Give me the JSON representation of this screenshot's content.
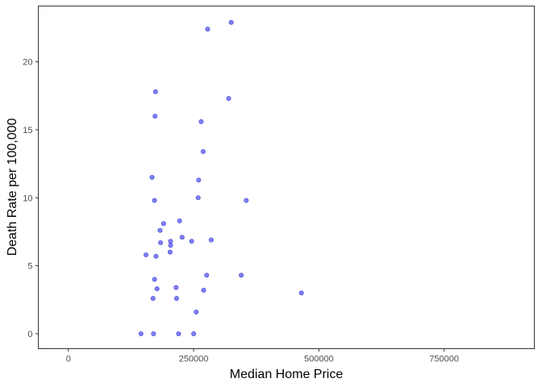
{
  "chart_data": {
    "type": "scatter",
    "title": "",
    "xlabel": "Median Home Price",
    "ylabel": "Death Rate per 100,000",
    "xlim": [
      -60000,
      930000
    ],
    "ylim": [
      -1.1,
      24.1
    ],
    "x_ticks": [
      0,
      250000,
      500000,
      750000
    ],
    "x_tick_labels": [
      "0",
      "250000",
      "500000",
      "750000"
    ],
    "y_ticks": [
      0,
      5,
      10,
      15,
      20
    ],
    "y_tick_labels": [
      "0",
      "5",
      "10",
      "15",
      "20"
    ],
    "grid": false,
    "legend": "none",
    "point_color": "#0000ff",
    "point_opacity": 0.5,
    "points": [
      {
        "x": 325000,
        "y": 22.9
      },
      {
        "x": 278000,
        "y": 22.4
      },
      {
        "x": 174000,
        "y": 17.8
      },
      {
        "x": 320000,
        "y": 17.3
      },
      {
        "x": 173000,
        "y": 16.0
      },
      {
        "x": 265000,
        "y": 15.6
      },
      {
        "x": 269000,
        "y": 13.4
      },
      {
        "x": 167000,
        "y": 11.5
      },
      {
        "x": 260000,
        "y": 11.3
      },
      {
        "x": 259000,
        "y": 10.0
      },
      {
        "x": 172000,
        "y": 9.8
      },
      {
        "x": 355000,
        "y": 9.8
      },
      {
        "x": 222000,
        "y": 8.3
      },
      {
        "x": 190000,
        "y": 8.1
      },
      {
        "x": 183000,
        "y": 7.6
      },
      {
        "x": 227000,
        "y": 7.1
      },
      {
        "x": 285000,
        "y": 6.9
      },
      {
        "x": 204000,
        "y": 6.8
      },
      {
        "x": 246000,
        "y": 6.8
      },
      {
        "x": 184000,
        "y": 6.7
      },
      {
        "x": 204000,
        "y": 6.5
      },
      {
        "x": 203000,
        "y": 6.0
      },
      {
        "x": 155000,
        "y": 5.8
      },
      {
        "x": 175000,
        "y": 5.7
      },
      {
        "x": 276000,
        "y": 4.3
      },
      {
        "x": 345000,
        "y": 4.3
      },
      {
        "x": 172000,
        "y": 4.0
      },
      {
        "x": 215000,
        "y": 3.4
      },
      {
        "x": 177000,
        "y": 3.3
      },
      {
        "x": 270000,
        "y": 3.2
      },
      {
        "x": 465000,
        "y": 3.0
      },
      {
        "x": 169000,
        "y": 2.6
      },
      {
        "x": 216000,
        "y": 2.6
      },
      {
        "x": 255000,
        "y": 1.6
      },
      {
        "x": 145000,
        "y": 0.0
      },
      {
        "x": 170000,
        "y": 0.0
      },
      {
        "x": 220000,
        "y": 0.0
      },
      {
        "x": 250000,
        "y": 0.0
      }
    ]
  }
}
